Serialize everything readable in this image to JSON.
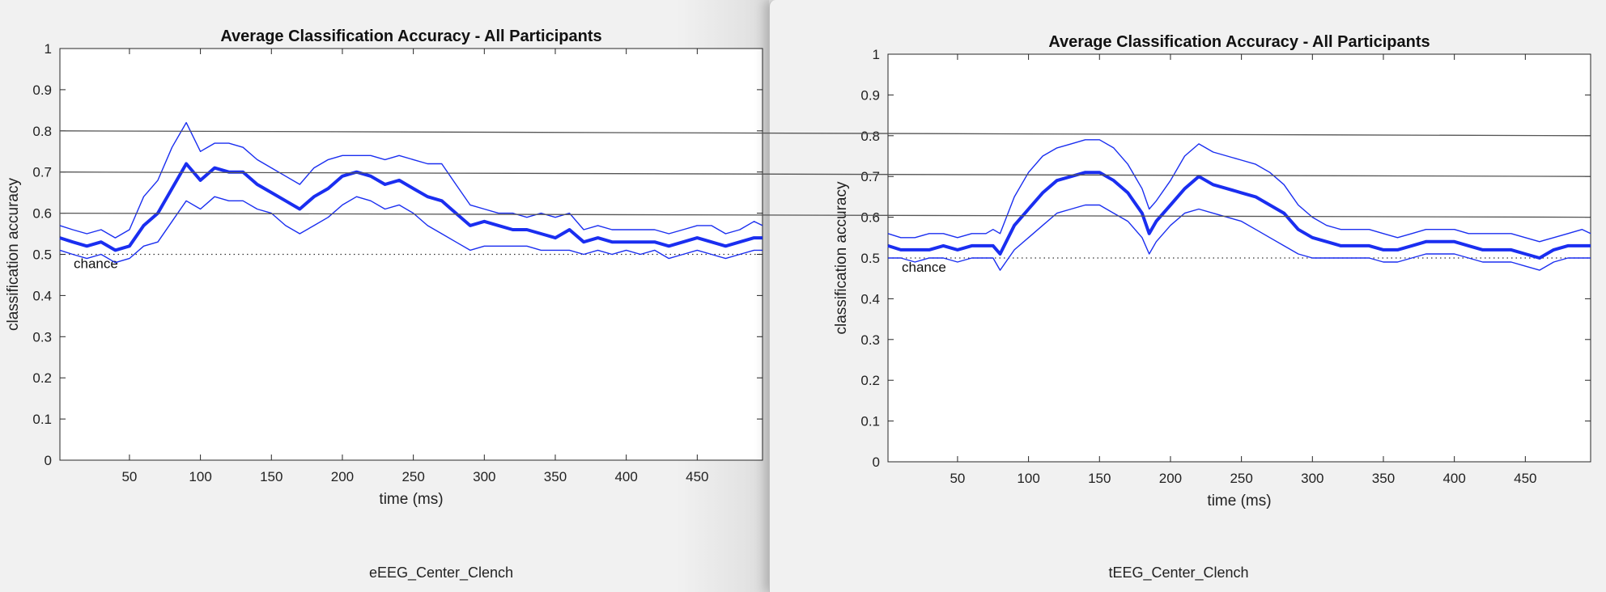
{
  "figures": [
    {
      "caption": "eEEG_Center_Clench"
    },
    {
      "caption": "tEEG_Center_Clench"
    }
  ],
  "colors": {
    "series": "#1a2ef0",
    "ref_lines": "#555555",
    "chance": "#333333"
  },
  "chart_data": [
    {
      "type": "line",
      "title": "Average Classification Accuracy - All Participants",
      "xlabel": "time (ms)",
      "ylabel": "classification accuracy",
      "xlim": [
        1,
        496
      ],
      "ylim": [
        0,
        1
      ],
      "xticks": [
        50,
        100,
        150,
        200,
        250,
        300,
        350,
        400,
        450
      ],
      "yticks": [
        0,
        0.1,
        0.2,
        0.3,
        0.4,
        0.5,
        0.6,
        0.7,
        0.8,
        0.9,
        1
      ],
      "grid": false,
      "chance_level": 0.5,
      "chance_label": "chance",
      "reference_lines": [
        0.8,
        0.7,
        0.6
      ],
      "series": [
        {
          "role": "mean",
          "x": [
            1,
            10,
            20,
            30,
            40,
            50,
            60,
            70,
            80,
            90,
            100,
            110,
            120,
            130,
            140,
            150,
            160,
            170,
            180,
            190,
            200,
            210,
            220,
            230,
            240,
            250,
            260,
            270,
            280,
            290,
            300,
            310,
            320,
            330,
            340,
            350,
            360,
            370,
            380,
            390,
            400,
            410,
            420,
            430,
            440,
            450,
            460,
            470,
            480,
            490,
            496
          ],
          "y": [
            0.54,
            0.53,
            0.52,
            0.53,
            0.51,
            0.52,
            0.57,
            0.6,
            0.66,
            0.72,
            0.68,
            0.71,
            0.7,
            0.7,
            0.67,
            0.65,
            0.63,
            0.61,
            0.64,
            0.66,
            0.69,
            0.7,
            0.69,
            0.67,
            0.68,
            0.66,
            0.64,
            0.63,
            0.6,
            0.57,
            0.58,
            0.57,
            0.56,
            0.56,
            0.55,
            0.54,
            0.56,
            0.53,
            0.54,
            0.53,
            0.53,
            0.53,
            0.53,
            0.52,
            0.53,
            0.54,
            0.53,
            0.52,
            0.53,
            0.54,
            0.54
          ]
        },
        {
          "role": "upper",
          "x": [
            1,
            10,
            20,
            30,
            40,
            50,
            60,
            70,
            80,
            90,
            100,
            110,
            120,
            130,
            140,
            150,
            160,
            170,
            180,
            190,
            200,
            210,
            220,
            230,
            240,
            250,
            260,
            270,
            280,
            290,
            300,
            310,
            320,
            330,
            340,
            350,
            360,
            370,
            380,
            390,
            400,
            410,
            420,
            430,
            440,
            450,
            460,
            470,
            480,
            490,
            496
          ],
          "y": [
            0.57,
            0.56,
            0.55,
            0.56,
            0.54,
            0.56,
            0.64,
            0.68,
            0.76,
            0.82,
            0.75,
            0.77,
            0.77,
            0.76,
            0.73,
            0.71,
            0.69,
            0.67,
            0.71,
            0.73,
            0.74,
            0.74,
            0.74,
            0.73,
            0.74,
            0.73,
            0.72,
            0.72,
            0.67,
            0.62,
            0.61,
            0.6,
            0.6,
            0.59,
            0.6,
            0.59,
            0.6,
            0.56,
            0.57,
            0.56,
            0.56,
            0.56,
            0.56,
            0.55,
            0.56,
            0.57,
            0.57,
            0.55,
            0.56,
            0.58,
            0.57
          ]
        },
        {
          "role": "lower",
          "x": [
            1,
            10,
            20,
            30,
            40,
            50,
            60,
            70,
            80,
            90,
            100,
            110,
            120,
            130,
            140,
            150,
            160,
            170,
            180,
            190,
            200,
            210,
            220,
            230,
            240,
            250,
            260,
            270,
            280,
            290,
            300,
            310,
            320,
            330,
            340,
            350,
            360,
            370,
            380,
            390,
            400,
            410,
            420,
            430,
            440,
            450,
            460,
            470,
            480,
            490,
            496
          ],
          "y": [
            0.51,
            0.5,
            0.49,
            0.5,
            0.48,
            0.49,
            0.52,
            0.53,
            0.58,
            0.63,
            0.61,
            0.64,
            0.63,
            0.63,
            0.61,
            0.6,
            0.57,
            0.55,
            0.57,
            0.59,
            0.62,
            0.64,
            0.63,
            0.61,
            0.62,
            0.6,
            0.57,
            0.55,
            0.53,
            0.51,
            0.52,
            0.52,
            0.52,
            0.52,
            0.51,
            0.51,
            0.51,
            0.5,
            0.51,
            0.5,
            0.51,
            0.5,
            0.51,
            0.49,
            0.5,
            0.51,
            0.5,
            0.49,
            0.5,
            0.51,
            0.51
          ]
        }
      ]
    },
    {
      "type": "line",
      "title": "Average Classification Accuracy - All Participants",
      "xlabel": "time (ms)",
      "ylabel": "classification accuracy",
      "xlim": [
        1,
        496
      ],
      "ylim": [
        0,
        1
      ],
      "xticks": [
        50,
        100,
        150,
        200,
        250,
        300,
        350,
        400,
        450
      ],
      "yticks": [
        0,
        0.1,
        0.2,
        0.3,
        0.4,
        0.5,
        0.6,
        0.7,
        0.8,
        0.9,
        1
      ],
      "grid": false,
      "chance_level": 0.5,
      "chance_label": "chance",
      "reference_lines": [
        0.8,
        0.7,
        0.6
      ],
      "series": [
        {
          "role": "mean",
          "x": [
            1,
            10,
            20,
            30,
            40,
            50,
            60,
            70,
            75,
            80,
            90,
            100,
            110,
            120,
            130,
            140,
            150,
            160,
            170,
            180,
            185,
            190,
            200,
            210,
            220,
            230,
            240,
            250,
            260,
            270,
            280,
            290,
            300,
            310,
            320,
            330,
            340,
            350,
            360,
            370,
            380,
            390,
            400,
            410,
            420,
            430,
            440,
            450,
            460,
            470,
            480,
            490,
            496
          ],
          "y": [
            0.53,
            0.52,
            0.52,
            0.52,
            0.53,
            0.52,
            0.53,
            0.53,
            0.53,
            0.51,
            0.58,
            0.62,
            0.66,
            0.69,
            0.7,
            0.71,
            0.71,
            0.69,
            0.66,
            0.61,
            0.56,
            0.59,
            0.63,
            0.67,
            0.7,
            0.68,
            0.67,
            0.66,
            0.65,
            0.63,
            0.61,
            0.57,
            0.55,
            0.54,
            0.53,
            0.53,
            0.53,
            0.52,
            0.52,
            0.53,
            0.54,
            0.54,
            0.54,
            0.53,
            0.52,
            0.52,
            0.52,
            0.51,
            0.5,
            0.52,
            0.53,
            0.53,
            0.53
          ]
        },
        {
          "role": "upper",
          "x": [
            1,
            10,
            20,
            30,
            40,
            50,
            60,
            70,
            75,
            80,
            90,
            100,
            110,
            120,
            130,
            140,
            150,
            160,
            170,
            180,
            185,
            190,
            200,
            210,
            220,
            230,
            240,
            250,
            260,
            270,
            280,
            290,
            300,
            310,
            320,
            330,
            340,
            350,
            360,
            370,
            380,
            390,
            400,
            410,
            420,
            430,
            440,
            450,
            460,
            470,
            480,
            490,
            496
          ],
          "y": [
            0.56,
            0.55,
            0.55,
            0.56,
            0.56,
            0.55,
            0.56,
            0.56,
            0.57,
            0.56,
            0.65,
            0.71,
            0.75,
            0.77,
            0.78,
            0.79,
            0.79,
            0.77,
            0.73,
            0.67,
            0.62,
            0.64,
            0.69,
            0.75,
            0.78,
            0.76,
            0.75,
            0.74,
            0.73,
            0.71,
            0.68,
            0.63,
            0.6,
            0.58,
            0.57,
            0.57,
            0.57,
            0.56,
            0.55,
            0.56,
            0.57,
            0.57,
            0.57,
            0.56,
            0.56,
            0.56,
            0.56,
            0.55,
            0.54,
            0.55,
            0.56,
            0.57,
            0.56
          ]
        },
        {
          "role": "lower",
          "x": [
            1,
            10,
            20,
            30,
            40,
            50,
            60,
            70,
            75,
            80,
            90,
            100,
            110,
            120,
            130,
            140,
            150,
            160,
            170,
            180,
            185,
            190,
            200,
            210,
            220,
            230,
            240,
            250,
            260,
            270,
            280,
            290,
            300,
            310,
            320,
            330,
            340,
            350,
            360,
            370,
            380,
            390,
            400,
            410,
            420,
            430,
            440,
            450,
            460,
            470,
            480,
            490,
            496
          ],
          "y": [
            0.5,
            0.5,
            0.49,
            0.5,
            0.5,
            0.49,
            0.5,
            0.5,
            0.5,
            0.47,
            0.52,
            0.55,
            0.58,
            0.61,
            0.62,
            0.63,
            0.63,
            0.61,
            0.59,
            0.55,
            0.51,
            0.54,
            0.58,
            0.61,
            0.62,
            0.61,
            0.6,
            0.59,
            0.57,
            0.55,
            0.53,
            0.51,
            0.5,
            0.5,
            0.5,
            0.5,
            0.5,
            0.49,
            0.49,
            0.5,
            0.51,
            0.51,
            0.51,
            0.5,
            0.49,
            0.49,
            0.49,
            0.48,
            0.47,
            0.49,
            0.5,
            0.5,
            0.5
          ]
        }
      ]
    }
  ]
}
